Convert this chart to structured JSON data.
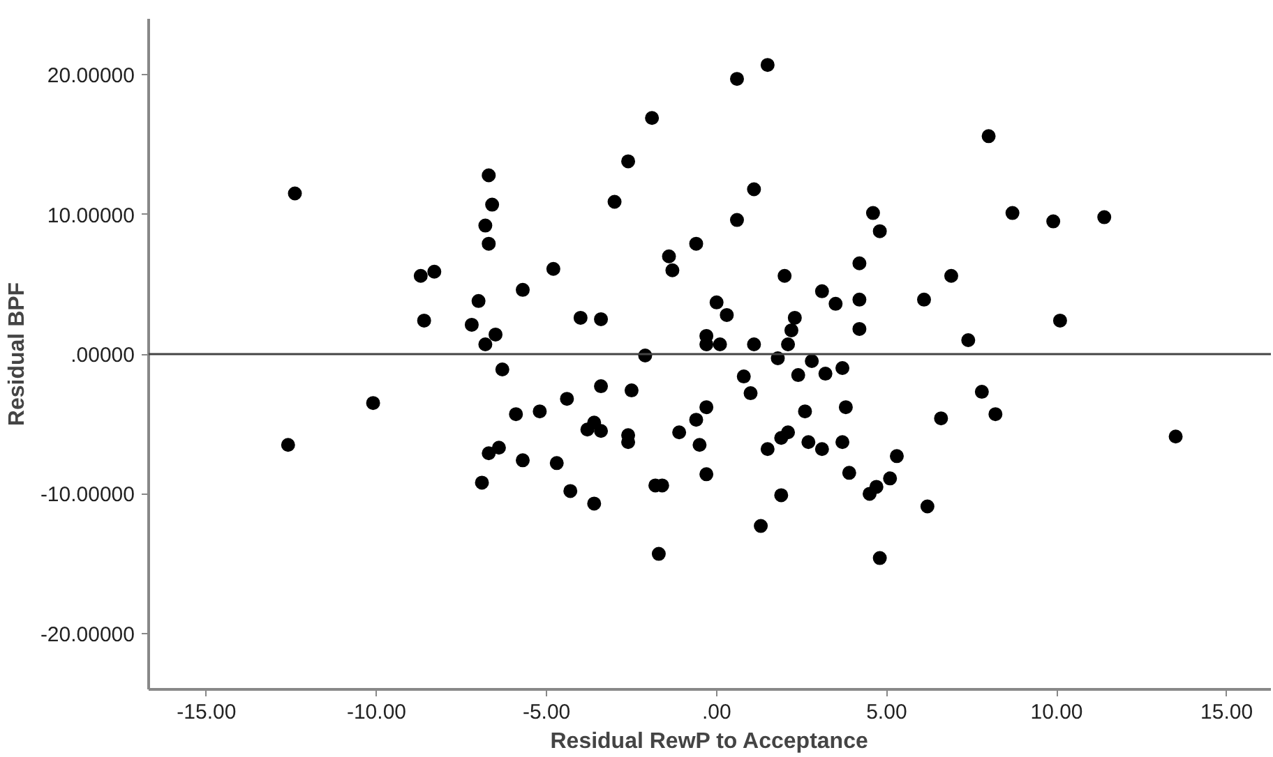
{
  "chart_data": {
    "type": "scatter",
    "xlabel": "Residual RewP to Acceptance",
    "ylabel": "Residual BPF",
    "xlim": [
      -16.7,
      16.3
    ],
    "ylim": [
      -24,
      24
    ],
    "xticks": [
      {
        "value": -15,
        "label": "-15.00"
      },
      {
        "value": -10,
        "label": "-10.00"
      },
      {
        "value": -5,
        "label": "-5.00"
      },
      {
        "value": 0,
        "label": ".00"
      },
      {
        "value": 5,
        "label": "5.00"
      },
      {
        "value": 10,
        "label": "10.00"
      },
      {
        "value": 15,
        "label": "15.00"
      }
    ],
    "yticks": [
      {
        "value": -20,
        "label": "-20.00000"
      },
      {
        "value": -10,
        "label": "-10.00000"
      },
      {
        "value": 0,
        "label": ".00000"
      },
      {
        "value": 10,
        "label": "10.00000"
      },
      {
        "value": 20,
        "label": "20.00000"
      }
    ],
    "grid": false,
    "marker": "circle",
    "ref_lines": [
      {
        "axis": "y",
        "value": 0,
        "color": "#444444"
      }
    ],
    "series": [
      {
        "color": "#000000",
        "x": [
          -12.4,
          -6.7,
          -6.6,
          -6.8,
          -6.7,
          -8.7,
          -8.3,
          -5.7,
          -7.0,
          -8.6,
          -7.2,
          -6.5,
          -6.8,
          -4.8,
          -4.0,
          -3.4,
          -3.0,
          -2.6,
          -1.9,
          -2.1,
          -1.4,
          -1.3,
          -0.6,
          -0.3,
          -0.3,
          0.1,
          0.0,
          0.3,
          0.6,
          1.5,
          1.1,
          0.6,
          1.1,
          1.8,
          2.1,
          2.0,
          2.3,
          2.2,
          2.8,
          3.1,
          3.5,
          4.2,
          4.2,
          4.2,
          4.6,
          4.8,
          8.0,
          8.7,
          9.9,
          11.4,
          6.9,
          6.1,
          10.1,
          7.4,
          -6.3,
          -10.1,
          -5.9,
          -12.6,
          -6.7,
          -6.4,
          -5.7,
          -6.9,
          -5.2,
          -4.4,
          -4.7,
          -4.3,
          -3.4,
          -3.6,
          -3.8,
          -3.4,
          -3.6,
          -2.5,
          -2.6,
          -2.6,
          -1.8,
          -1.6,
          -1.7,
          -1.1,
          -0.6,
          -0.3,
          -0.5,
          -0.3,
          0.8,
          1.0,
          2.4,
          3.2,
          3.7,
          2.6,
          3.8,
          1.5,
          1.9,
          2.1,
          2.7,
          3.1,
          3.7,
          1.9,
          1.3,
          3.9,
          4.5,
          4.7,
          5.1,
          5.3,
          4.8,
          6.2,
          6.6,
          7.8,
          8.2,
          13.5
        ],
        "values": [
          11.5,
          12.8,
          10.7,
          9.2,
          7.9,
          5.6,
          5.9,
          4.6,
          3.8,
          2.4,
          2.1,
          1.4,
          0.7,
          6.1,
          2.6,
          2.5,
          10.9,
          13.8,
          16.9,
          -0.1,
          7.0,
          6.0,
          7.9,
          1.3,
          0.7,
          0.7,
          3.7,
          2.8,
          19.7,
          20.7,
          11.8,
          9.6,
          0.7,
          -0.3,
          0.7,
          5.6,
          2.6,
          1.7,
          -0.5,
          4.5,
          3.6,
          6.5,
          3.9,
          1.8,
          10.1,
          8.8,
          15.6,
          10.1,
          9.5,
          9.8,
          5.6,
          3.9,
          2.4,
          1.0,
          -1.1,
          -3.5,
          -4.3,
          -6.5,
          -7.1,
          -6.7,
          -7.6,
          -9.2,
          -4.1,
          -3.2,
          -7.8,
          -9.8,
          -2.3,
          -4.9,
          -5.4,
          -5.5,
          -10.7,
          -2.6,
          -5.8,
          -6.3,
          -9.4,
          -9.4,
          -14.3,
          -5.6,
          -4.7,
          -3.8,
          -6.5,
          -8.6,
          -1.6,
          -2.8,
          -1.5,
          -1.4,
          -1.0,
          -4.1,
          -3.8,
          -6.8,
          -6.0,
          -5.6,
          -6.3,
          -6.8,
          -6.3,
          -10.1,
          -12.3,
          -8.5,
          -10.0,
          -9.5,
          -8.9,
          -7.3,
          -14.6,
          -10.9,
          -4.6,
          -2.7,
          -4.3,
          -5.9
        ]
      }
    ]
  }
}
